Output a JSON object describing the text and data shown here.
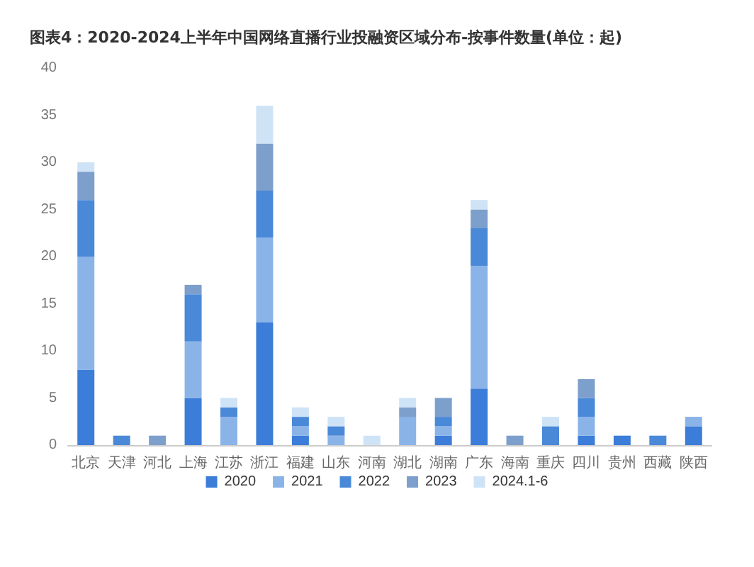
{
  "chart_data": {
    "type": "bar",
    "stacked": true,
    "title": "图表4：2020-2024上半年中国网络直播行业投融资区域分布-按事件数量(单位：起)",
    "categories": [
      "北京",
      "天津",
      "河北",
      "上海",
      "江苏",
      "浙江",
      "福建",
      "山东",
      "河南",
      "湖北",
      "湖南",
      "广东",
      "海南",
      "重庆",
      "四川",
      "贵州",
      "西藏",
      "陕西"
    ],
    "series": [
      {
        "name": "2020",
        "color": "#3b7dd8",
        "values": [
          8,
          0,
          0,
          5,
          0,
          13,
          1,
          0,
          0,
          0,
          1,
          6,
          0,
          0,
          1,
          1,
          0,
          2
        ]
      },
      {
        "name": "2021",
        "color": "#8ab4e8",
        "values": [
          12,
          0,
          0,
          6,
          3,
          9,
          1,
          1,
          0,
          3,
          1,
          13,
          0,
          0,
          2,
          0,
          0,
          1
        ]
      },
      {
        "name": "2022",
        "color": "#4a88d8",
        "values": [
          6,
          1,
          0,
          5,
          1,
          5,
          1,
          1,
          0,
          0,
          1,
          4,
          0,
          2,
          2,
          0,
          1,
          0
        ]
      },
      {
        "name": "2023",
        "color": "#7d9fcc",
        "values": [
          3,
          0,
          1,
          1,
          0,
          5,
          0,
          0,
          0,
          1,
          2,
          2,
          1,
          0,
          2,
          0,
          0,
          0
        ]
      },
      {
        "name": "2024.1-6",
        "color": "#cfe3f7",
        "values": [
          1,
          0,
          0,
          0,
          1,
          4,
          1,
          1,
          1,
          1,
          0,
          1,
          0,
          1,
          0,
          0,
          0,
          0
        ]
      }
    ],
    "ylim": [
      0,
      40
    ],
    "yticks": [
      0,
      5,
      10,
      15,
      20,
      25,
      30,
      35,
      40
    ],
    "grid": false,
    "legend": "bottom"
  }
}
